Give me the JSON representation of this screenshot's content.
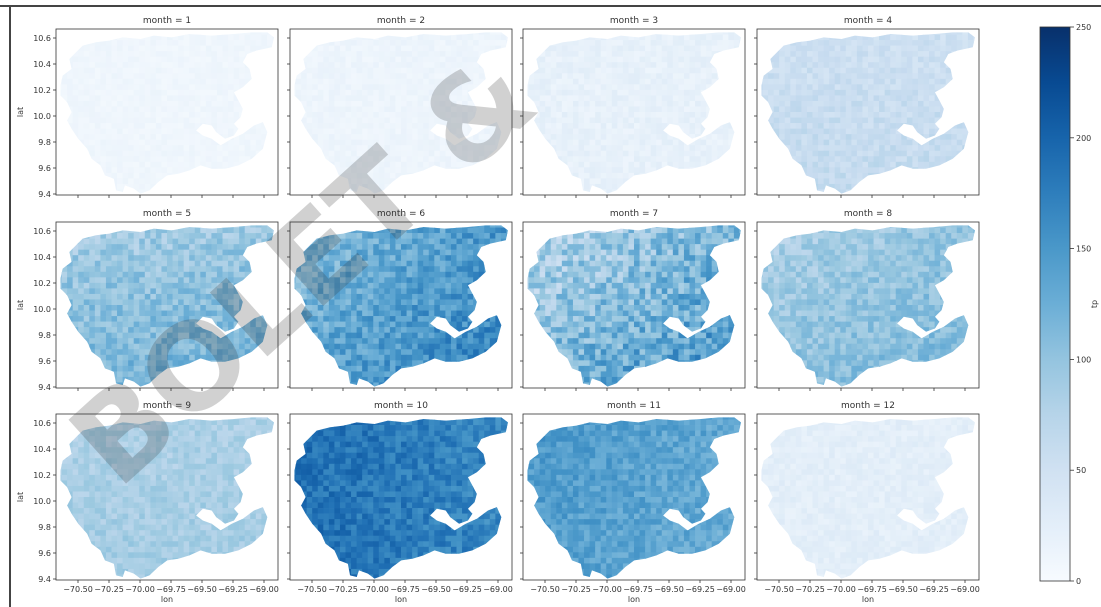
{
  "chart_data": {
    "type": "heatmap",
    "layout": "facet-grid",
    "facet_var": "month",
    "facet_title_template": "month = {m}",
    "xlabel": "lon",
    "ylabel": "lat",
    "x_tick_labels": [
      "-70.50",
      "-70.25",
      "-70.00",
      "-69.75",
      "-69.50",
      "-69.25",
      "-69.00"
    ],
    "y_tick_labels": [
      "10.6",
      "10.4",
      "10.2",
      "10.0",
      "9.8",
      "9.6",
      "9.4"
    ],
    "xlim": [
      -70.75,
      -68.9
    ],
    "ylim": [
      9.4,
      10.75
    ],
    "colormap": "Blues",
    "colorbar": {
      "vmin": 0,
      "vmax": 250,
      "ticks": [
        0,
        50,
        100,
        150,
        200,
        250
      ],
      "label": "tp"
    },
    "panels": [
      {
        "month": 1,
        "mean_value": 8,
        "min_value": 0,
        "max_value": 25
      },
      {
        "month": 2,
        "mean_value": 10,
        "min_value": 0,
        "max_value": 30
      },
      {
        "month": 3,
        "mean_value": 18,
        "min_value": 0,
        "max_value": 45
      },
      {
        "month": 4,
        "mean_value": 55,
        "min_value": 25,
        "max_value": 95
      },
      {
        "month": 5,
        "mean_value": 90,
        "min_value": 50,
        "max_value": 175
      },
      {
        "month": 6,
        "mean_value": 130,
        "min_value": 60,
        "max_value": 220
      },
      {
        "month": 7,
        "mean_value": 100,
        "min_value": 30,
        "max_value": 240
      },
      {
        "month": 8,
        "mean_value": 90,
        "min_value": 50,
        "max_value": 160
      },
      {
        "month": 9,
        "mean_value": 85,
        "min_value": 50,
        "max_value": 130
      },
      {
        "month": 10,
        "mean_value": 175,
        "min_value": 120,
        "max_value": 235
      },
      {
        "month": 11,
        "mean_value": 135,
        "min_value": 90,
        "max_value": 200
      },
      {
        "month": 12,
        "mean_value": 22,
        "min_value": 5,
        "max_value": 50
      }
    ]
  },
  "watermark": {
    "text": "BOLET &",
    "color": "#e02020"
  },
  "colors": {
    "cmap_low": "#f7fbff",
    "cmap_high": "#08306b",
    "frame": "#444444"
  }
}
